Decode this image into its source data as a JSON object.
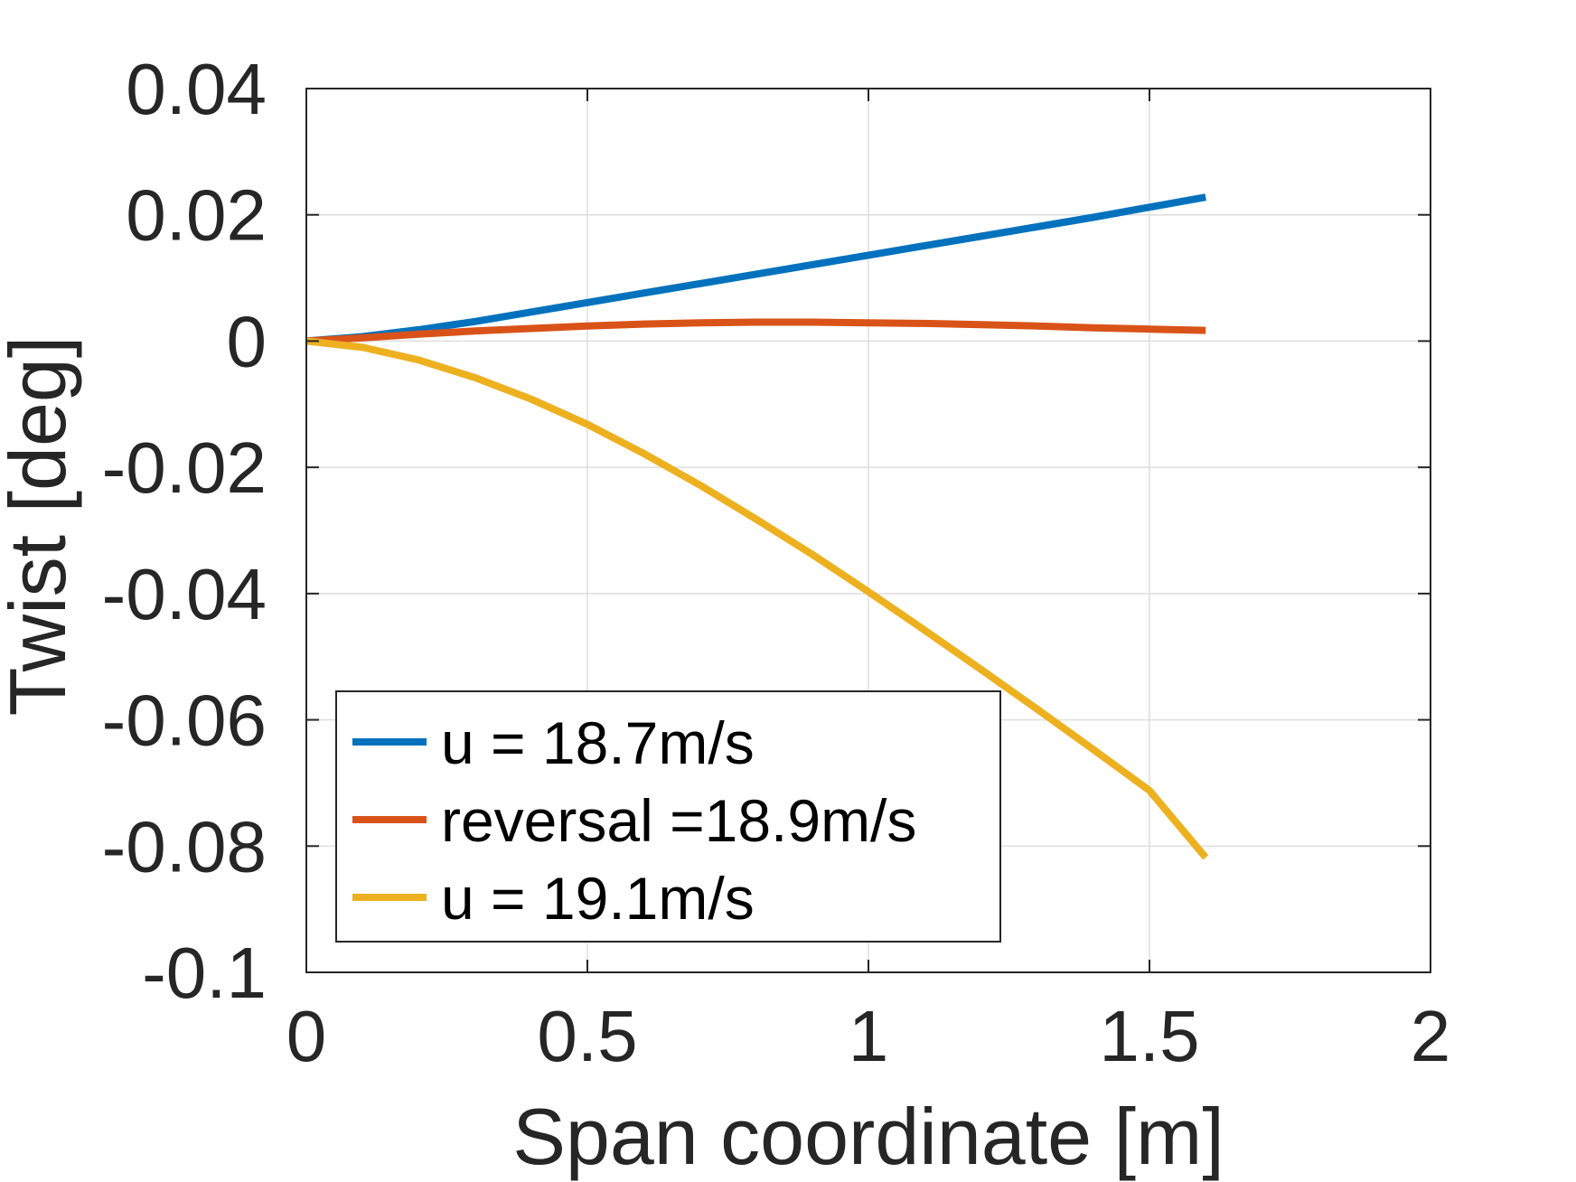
{
  "chart_data": {
    "type": "line",
    "xlabel": "Span coordinate [m]",
    "ylabel": "Twist [deg]",
    "xlim": [
      0,
      2
    ],
    "ylim": [
      -0.1,
      0.04
    ],
    "xticks": [
      0,
      0.5,
      1,
      1.5,
      2
    ],
    "xtick_labels": [
      "0",
      "0.5",
      "1",
      "1.5",
      "2"
    ],
    "yticks": [
      0.04,
      0.02,
      0,
      -0.02,
      -0.04,
      -0.06,
      -0.08,
      -0.1
    ],
    "ytick_labels": [
      "0.04",
      "0.02",
      "0",
      "-0.02",
      "-0.04",
      "-0.06",
      "-0.08",
      "-0.1"
    ],
    "grid": true,
    "legend_position": "bottom-left",
    "series": [
      {
        "name": "u = 18.7m/s",
        "color": "#0072BD",
        "x": [
          0,
          0.1,
          0.2,
          0.3,
          0.4,
          0.5,
          0.6,
          0.7,
          0.8,
          0.9,
          1.0,
          1.1,
          1.2,
          1.3,
          1.4,
          1.5,
          1.6
        ],
        "y": [
          0,
          0.0007,
          0.0018,
          0.0031,
          0.0046,
          0.0061,
          0.0076,
          0.0091,
          0.0106,
          0.0121,
          0.0136,
          0.0151,
          0.0166,
          0.0181,
          0.0196,
          0.0212,
          0.0228
        ]
      },
      {
        "name": "reversal =18.9m/s",
        "color": "#D95319",
        "x": [
          0,
          0.1,
          0.2,
          0.3,
          0.4,
          0.5,
          0.6,
          0.7,
          0.8,
          0.9,
          1.0,
          1.1,
          1.2,
          1.3,
          1.4,
          1.5,
          1.6
        ],
        "y": [
          0,
          0.0005,
          0.0011,
          0.0016,
          0.002,
          0.0024,
          0.0027,
          0.0029,
          0.003,
          0.003,
          0.0029,
          0.0028,
          0.0026,
          0.0024,
          0.0021,
          0.0019,
          0.0017
        ]
      },
      {
        "name": "u = 19.1m/s",
        "color": "#EDB120",
        "x": [
          0,
          0.1,
          0.2,
          0.3,
          0.4,
          0.5,
          0.6,
          0.7,
          0.8,
          0.9,
          1.0,
          1.1,
          1.2,
          1.3,
          1.4,
          1.5,
          1.6
        ],
        "y": [
          0,
          -0.001,
          -0.003,
          -0.0058,
          -0.0092,
          -0.0132,
          -0.0178,
          -0.0228,
          -0.0282,
          -0.0338,
          -0.0397,
          -0.0458,
          -0.052,
          -0.0583,
          -0.0647,
          -0.0712,
          -0.0818
        ]
      }
    ]
  }
}
